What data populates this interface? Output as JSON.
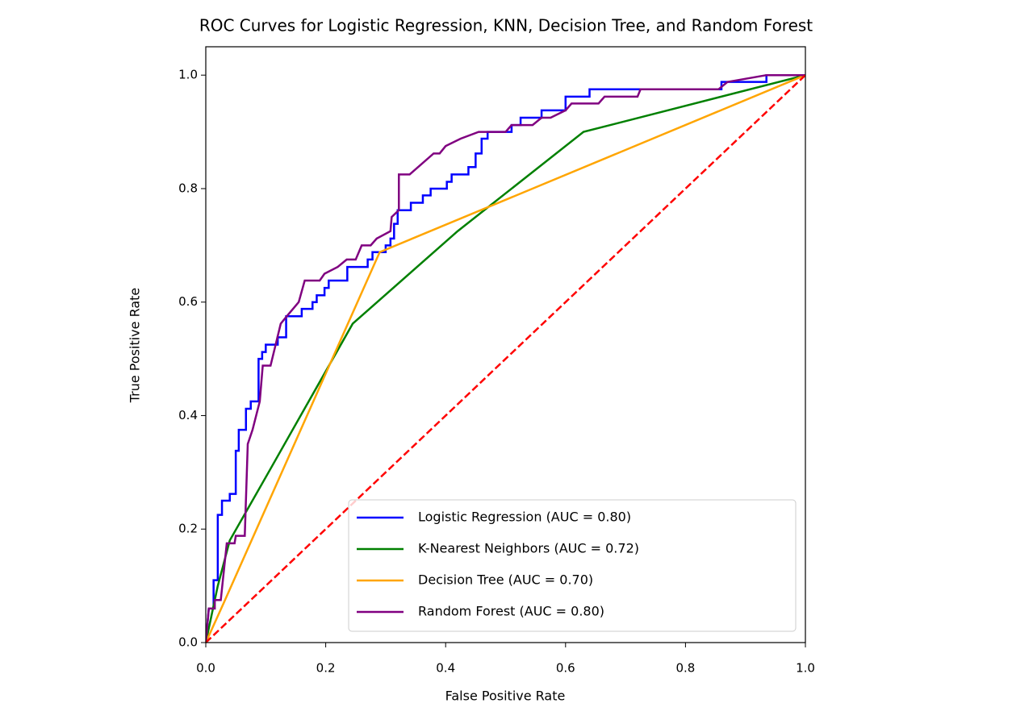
{
  "chart_data": {
    "type": "line",
    "title": "ROC Curves for Logistic Regression, KNN, Decision Tree, and Random Forest",
    "xlabel": "False Positive Rate",
    "ylabel": "True Positive Rate",
    "xlim": [
      0,
      1
    ],
    "ylim": [
      0,
      1.05
    ],
    "xticks": [
      {
        "value": 0,
        "label": "0.0"
      },
      0.2,
      0.4,
      0.6,
      0.8,
      {
        "value": 1,
        "label": "1.0"
      }
    ],
    "yticks": [
      {
        "value": 0,
        "label": "0.0"
      },
      0.2,
      0.4,
      0.6,
      0.8,
      {
        "value": 1,
        "label": "1.0"
      }
    ],
    "grid": false,
    "legend": "lower right",
    "series": [
      {
        "name": "Logistic Regression (AUC = 0.80)",
        "color": "blue",
        "x": [
          0,
          0.005,
          0.013,
          0.013,
          0.02,
          0.02,
          0.027,
          0.027,
          0.04,
          0.04,
          0.05,
          0.05,
          0.055,
          0.055,
          0.067,
          0.067,
          0.075,
          0.075,
          0.088,
          0.088,
          0.094,
          0.094,
          0.1,
          0.1,
          0.12,
          0.12,
          0.134,
          0.134,
          0.16,
          0.16,
          0.178,
          0.178,
          0.185,
          0.185,
          0.198,
          0.198,
          0.205,
          0.205,
          0.236,
          0.236,
          0.27,
          0.27,
          0.278,
          0.278,
          0.3,
          0.3,
          0.308,
          0.308,
          0.314,
          0.314,
          0.32,
          0.32,
          0.342,
          0.342,
          0.362,
          0.362,
          0.375,
          0.375,
          0.402,
          0.402,
          0.41,
          0.41,
          0.438,
          0.438,
          0.45,
          0.45,
          0.46,
          0.46,
          0.47,
          0.47,
          0.51,
          0.51,
          0.525,
          0.525,
          0.56,
          0.56,
          0.6,
          0.6,
          0.64,
          0.64,
          0.86,
          0.86,
          0.935,
          0.935,
          1
        ],
        "values": [
          0,
          0.06,
          0.06,
          0.11,
          0.11,
          0.225,
          0.225,
          0.25,
          0.25,
          0.262,
          0.262,
          0.338,
          0.338,
          0.375,
          0.375,
          0.412,
          0.412,
          0.425,
          0.425,
          0.5,
          0.5,
          0.512,
          0.512,
          0.525,
          0.525,
          0.538,
          0.538,
          0.575,
          0.575,
          0.588,
          0.588,
          0.6,
          0.6,
          0.612,
          0.612,
          0.625,
          0.625,
          0.638,
          0.638,
          0.662,
          0.662,
          0.675,
          0.675,
          0.688,
          0.688,
          0.7,
          0.7,
          0.712,
          0.712,
          0.738,
          0.738,
          0.762,
          0.762,
          0.775,
          0.775,
          0.788,
          0.788,
          0.8,
          0.8,
          0.812,
          0.812,
          0.825,
          0.825,
          0.838,
          0.838,
          0.862,
          0.862,
          0.888,
          0.888,
          0.9,
          0.9,
          0.912,
          0.912,
          0.925,
          0.925,
          0.938,
          0.938,
          0.962,
          0.962,
          0.975,
          0.975,
          0.988,
          0.988,
          1,
          1
        ]
      },
      {
        "name": "K-Nearest Neighbors (AUC = 0.72)",
        "color": "green",
        "x": [
          0,
          0.02,
          0.04,
          0.11,
          0.245,
          0.42,
          0.63,
          1
        ],
        "values": [
          0,
          0.1,
          0.18,
          0.31,
          0.562,
          0.725,
          0.9,
          1
        ]
      },
      {
        "name": "Decision Tree (AUC = 0.70)",
        "color": "orange",
        "x": [
          0,
          0.03,
          0.29,
          1
        ],
        "values": [
          0,
          0.07,
          0.688,
          1
        ]
      },
      {
        "name": "Random Forest (AUC = 0.80)",
        "color": "purple",
        "x": [
          0,
          0.005,
          0.015,
          0.015,
          0.025,
          0.03,
          0.035,
          0.048,
          0.05,
          0.065,
          0.07,
          0.078,
          0.09,
          0.095,
          0.108,
          0.125,
          0.135,
          0.155,
          0.165,
          0.19,
          0.198,
          0.22,
          0.235,
          0.25,
          0.26,
          0.275,
          0.285,
          0.308,
          0.31,
          0.322,
          0.322,
          0.34,
          0.38,
          0.39,
          0.4,
          0.425,
          0.455,
          0.5,
          0.51,
          0.545,
          0.56,
          0.575,
          0.6,
          0.61,
          0.655,
          0.665,
          0.72,
          0.725,
          0.855,
          0.87,
          0.935,
          1
        ],
        "values": [
          0,
          0.06,
          0.06,
          0.075,
          0.075,
          0.125,
          0.175,
          0.175,
          0.188,
          0.188,
          0.35,
          0.375,
          0.425,
          0.488,
          0.488,
          0.562,
          0.575,
          0.6,
          0.638,
          0.638,
          0.65,
          0.662,
          0.675,
          0.675,
          0.7,
          0.7,
          0.712,
          0.725,
          0.75,
          0.762,
          0.825,
          0.825,
          0.862,
          0.862,
          0.875,
          0.888,
          0.9,
          0.9,
          0.912,
          0.912,
          0.925,
          0.925,
          0.938,
          0.95,
          0.95,
          0.962,
          0.962,
          0.975,
          0.975,
          0.988,
          1,
          1
        ]
      }
    ],
    "reference_line": {
      "x": [
        0,
        1
      ],
      "values": [
        0,
        1
      ],
      "color": "red",
      "style": "dashed"
    }
  }
}
